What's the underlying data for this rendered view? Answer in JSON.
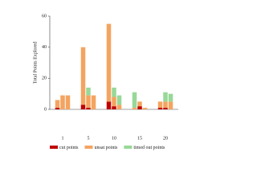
{
  "chart_data": {
    "type": "grouped-stacked-bar",
    "y_label": "Total Points Explored",
    "categories": [
      "1",
      "5",
      "10",
      "15",
      "20"
    ],
    "ylim": [
      0,
      60
    ],
    "yticks": [
      0,
      20,
      40,
      60
    ],
    "legend": "bottom",
    "series": [
      {
        "name": "cut points",
        "color": "#c00000",
        "values": [
          [
            1,
            0,
            0
          ],
          [
            3,
            1,
            0
          ],
          [
            5,
            2,
            0
          ],
          [
            0,
            2,
            0
          ],
          [
            1,
            1,
            0
          ]
        ]
      },
      {
        "name": "unsat points",
        "color": "#f4a460",
        "values": [
          [
            5,
            9,
            9
          ],
          [
            37,
            8,
            9
          ],
          [
            50,
            6,
            3
          ],
          [
            1,
            3,
            1
          ],
          [
            4,
            4,
            5
          ]
        ]
      },
      {
        "name": "timed out points",
        "color": "#98d898",
        "values": [
          [
            0,
            0,
            0
          ],
          [
            0,
            5,
            0
          ],
          [
            0,
            6,
            6
          ],
          [
            10,
            0,
            0
          ],
          [
            0,
            6,
            5
          ]
        ]
      }
    ]
  }
}
